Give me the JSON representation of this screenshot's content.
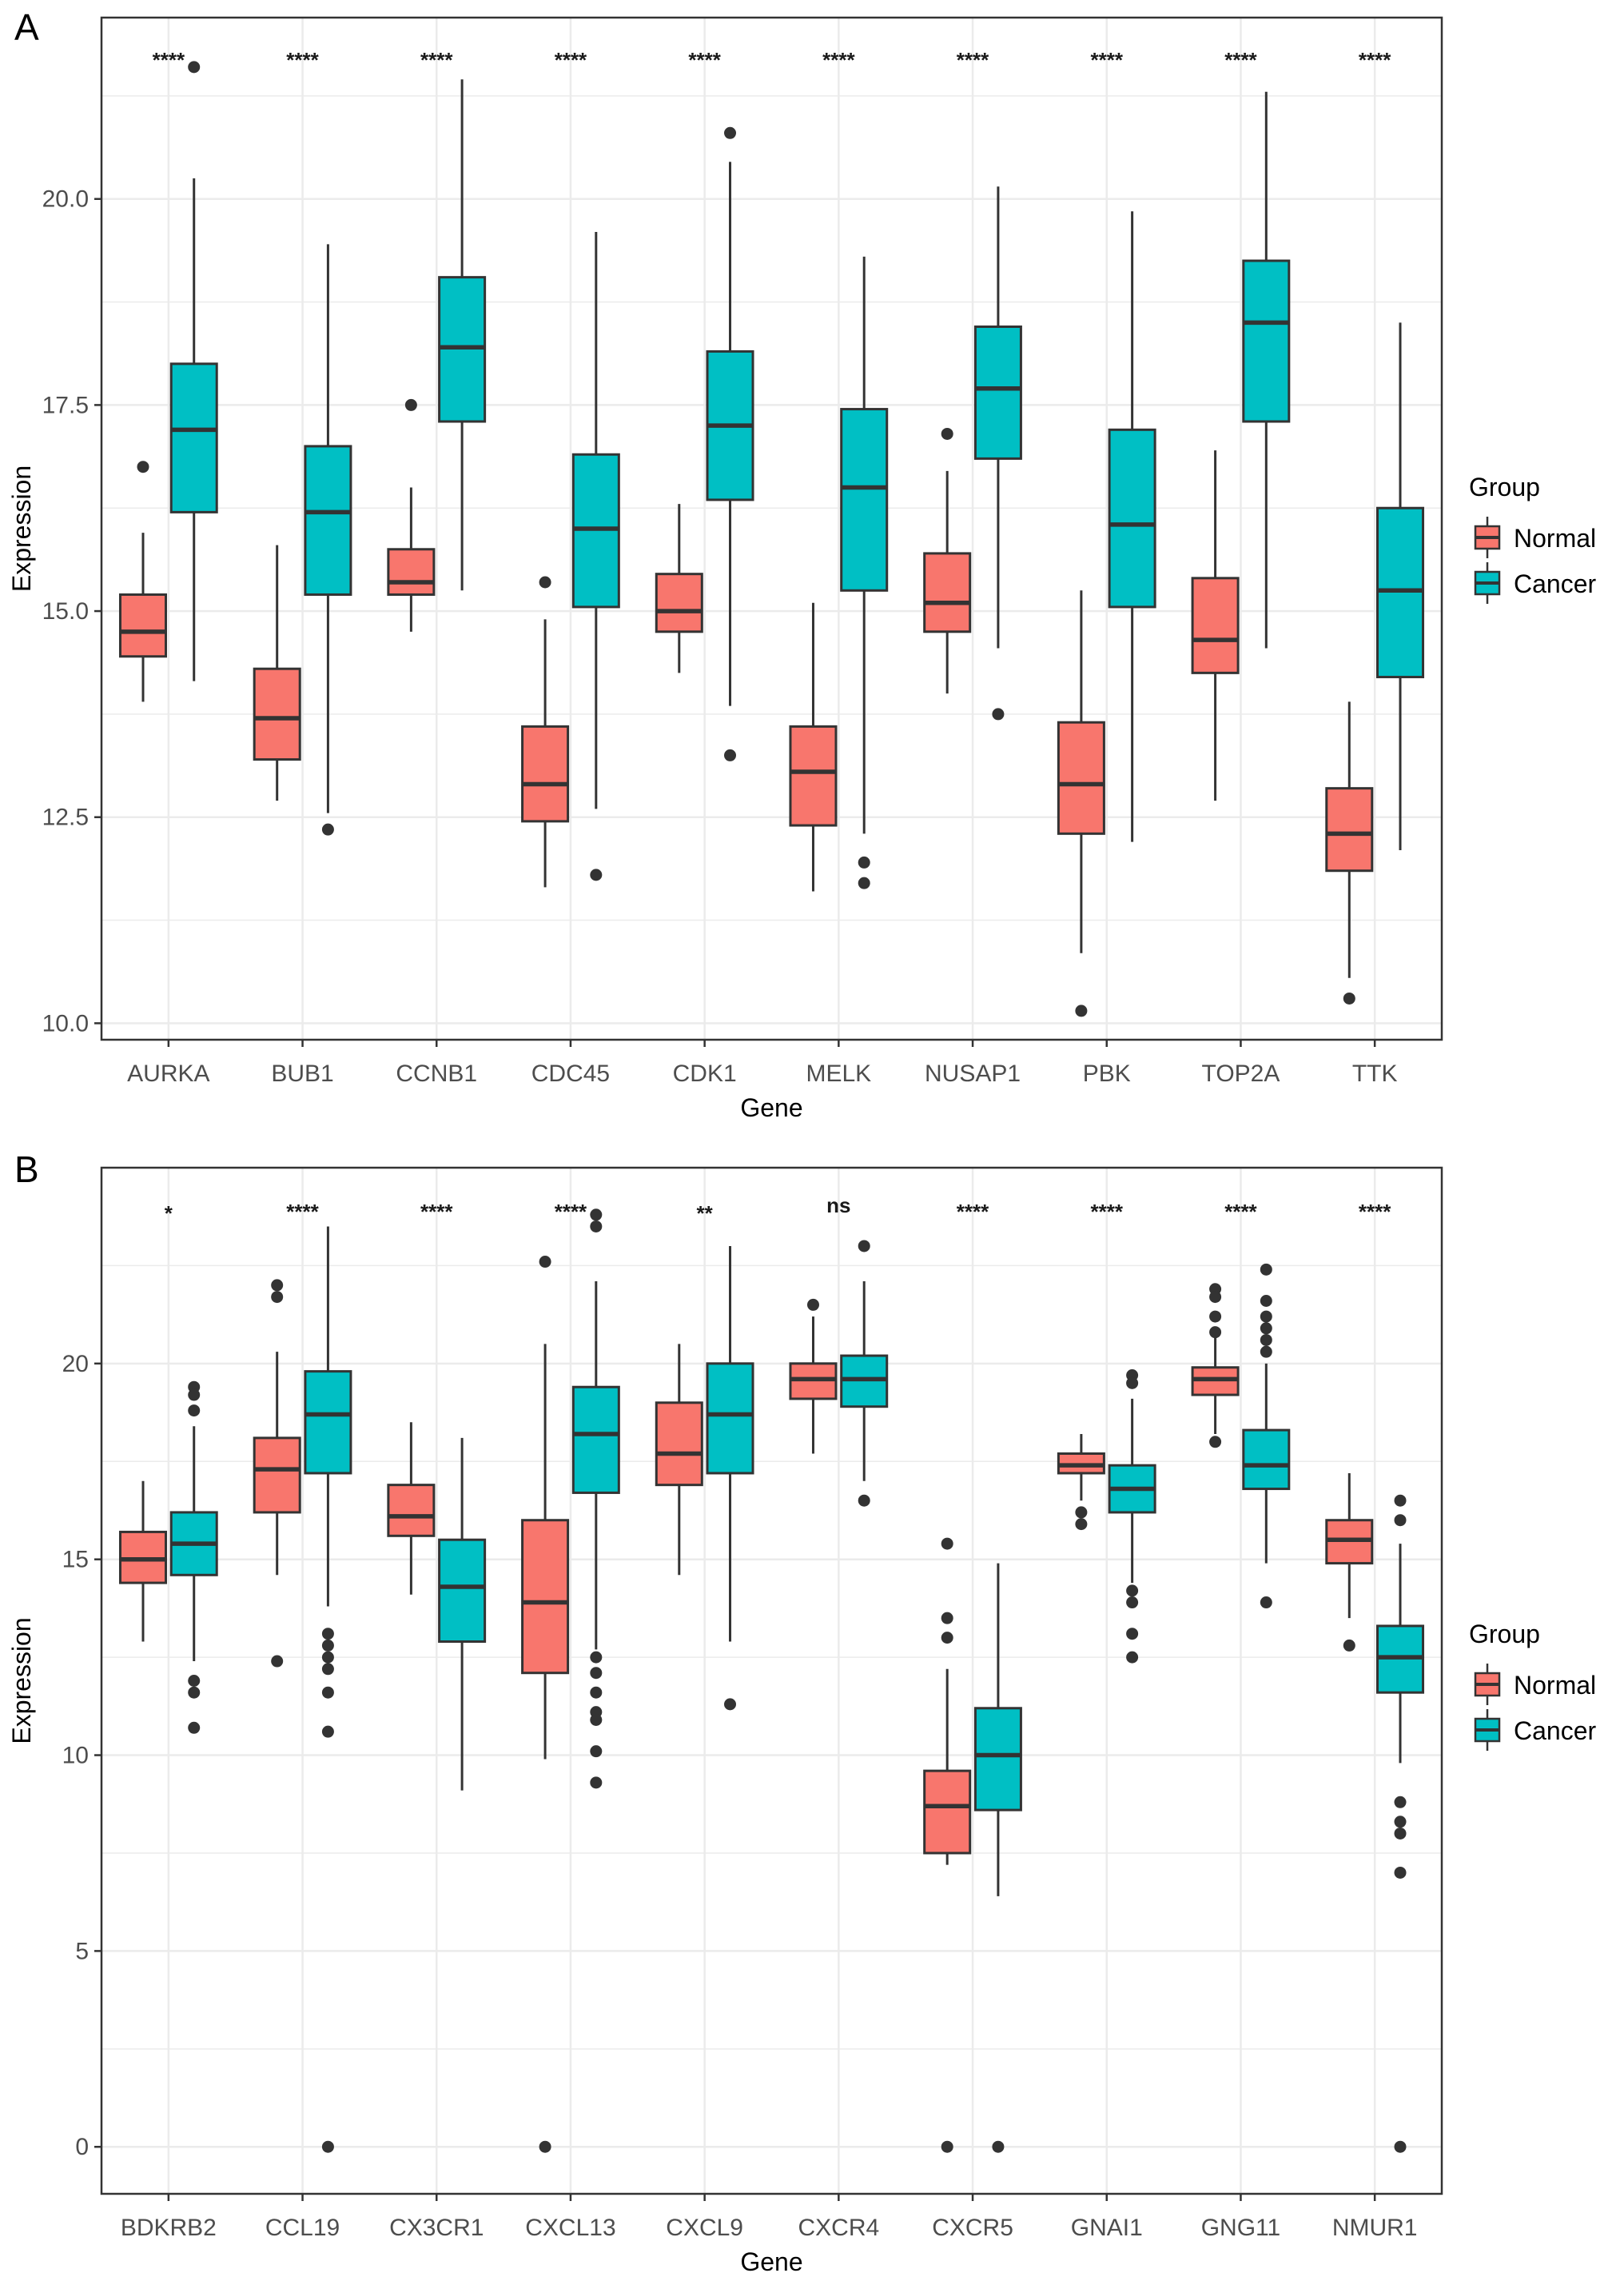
{
  "colors": {
    "normal": "#F8766D",
    "cancer": "#00BFC4",
    "outline": "#333333",
    "grid": "#EBEBEB"
  },
  "legend": {
    "title": "Group",
    "items": [
      "Normal",
      "Cancer"
    ]
  },
  "chart_data": [
    {
      "panel": "A",
      "type": "box",
      "xlabel": "Gene",
      "ylabel": "Expression",
      "ylim": [
        9.8,
        22.2
      ],
      "yticks": [
        10.0,
        12.5,
        15.0,
        17.5,
        20.0
      ],
      "ytick_labels": [
        "10.0",
        "12.5",
        "15.0",
        "17.5",
        "20.0"
      ],
      "grid": true,
      "legend_position": "right",
      "categories": [
        "AURKA",
        "BUB1",
        "CCNB1",
        "CDC45",
        "CDK1",
        "MELK",
        "NUSAP1",
        "PBK",
        "TOP2A",
        "TTK"
      ],
      "significance": [
        "****",
        "****",
        "****",
        "****",
        "****",
        "****",
        "****",
        "****",
        "****",
        "****"
      ],
      "series": [
        {
          "name": "Normal",
          "boxes": [
            {
              "whislo": 13.9,
              "q1": 14.45,
              "med": 14.75,
              "q3": 15.2,
              "whishi": 15.95,
              "fliers": [
                16.75
              ]
            },
            {
              "whislo": 12.7,
              "q1": 13.2,
              "med": 13.7,
              "q3": 14.3,
              "whishi": 15.8,
              "fliers": []
            },
            {
              "whislo": 14.75,
              "q1": 15.2,
              "med": 15.35,
              "q3": 15.75,
              "whishi": 16.5,
              "fliers": [
                17.5
              ]
            },
            {
              "whislo": 11.65,
              "q1": 12.45,
              "med": 12.9,
              "q3": 13.6,
              "whishi": 14.9,
              "fliers": [
                15.35
              ]
            },
            {
              "whislo": 14.25,
              "q1": 14.75,
              "med": 15.0,
              "q3": 15.45,
              "whishi": 16.3,
              "fliers": []
            },
            {
              "whislo": 11.6,
              "q1": 12.4,
              "med": 13.05,
              "q3": 13.6,
              "whishi": 15.1,
              "fliers": []
            },
            {
              "whislo": 14.0,
              "q1": 14.75,
              "med": 15.1,
              "q3": 15.7,
              "whishi": 16.7,
              "fliers": [
                17.15
              ]
            },
            {
              "whislo": 10.85,
              "q1": 12.3,
              "med": 12.9,
              "q3": 13.65,
              "whishi": 15.25,
              "fliers": [
                10.15
              ]
            },
            {
              "whislo": 12.7,
              "q1": 14.25,
              "med": 14.65,
              "q3": 15.4,
              "whishi": 16.95,
              "fliers": []
            },
            {
              "whislo": 10.55,
              "q1": 11.85,
              "med": 12.3,
              "q3": 12.85,
              "whishi": 13.9,
              "fliers": [
                10.3
              ]
            }
          ]
        },
        {
          "name": "Cancer",
          "boxes": [
            {
              "whislo": 14.15,
              "q1": 16.2,
              "med": 17.2,
              "q3": 18.0,
              "whishi": 20.25,
              "fliers": [
                21.6
              ]
            },
            {
              "whislo": 12.55,
              "q1": 15.2,
              "med": 16.2,
              "q3": 17.0,
              "whishi": 19.45,
              "fliers": [
                12.35
              ]
            },
            {
              "whislo": 15.25,
              "q1": 17.3,
              "med": 18.2,
              "q3": 19.05,
              "whishi": 21.45,
              "fliers": []
            },
            {
              "whislo": 12.6,
              "q1": 15.05,
              "med": 16.0,
              "q3": 16.9,
              "whishi": 19.6,
              "fliers": [
                11.8
              ]
            },
            {
              "whislo": 13.85,
              "q1": 16.35,
              "med": 17.25,
              "q3": 18.15,
              "whishi": 20.45,
              "fliers": [
                20.8,
                13.25
              ]
            },
            {
              "whislo": 12.3,
              "q1": 15.25,
              "med": 16.5,
              "q3": 17.45,
              "whishi": 19.3,
              "fliers": [
                11.95,
                11.7
              ]
            },
            {
              "whislo": 14.55,
              "q1": 16.85,
              "med": 17.7,
              "q3": 18.45,
              "whishi": 20.15,
              "fliers": [
                13.75
              ]
            },
            {
              "whislo": 12.2,
              "q1": 15.05,
              "med": 16.05,
              "q3": 17.2,
              "whishi": 19.85,
              "fliers": []
            },
            {
              "whislo": 14.55,
              "q1": 17.3,
              "med": 18.5,
              "q3": 19.25,
              "whishi": 21.3,
              "fliers": []
            },
            {
              "whislo": 12.1,
              "q1": 14.2,
              "med": 15.25,
              "q3": 16.25,
              "whishi": 18.5,
              "fliers": []
            }
          ]
        }
      ]
    },
    {
      "panel": "B",
      "type": "box",
      "xlabel": "Gene",
      "ylabel": "Expression",
      "ylim": [
        -1.2,
        25.0
      ],
      "yticks": [
        0,
        5,
        10,
        15,
        20
      ],
      "ytick_labels": [
        "0",
        "5",
        "10",
        "15",
        "20"
      ],
      "grid": true,
      "legend_position": "right",
      "categories": [
        "BDKRB2",
        "CCL19",
        "CX3CR1",
        "CXCL13",
        "CXCL9",
        "CXCR4",
        "CXCR5",
        "GNAI1",
        "GNG11",
        "NMUR1"
      ],
      "significance": [
        "*",
        "****",
        "****",
        "****",
        "**",
        "ns",
        "****",
        "****",
        "****",
        "****"
      ],
      "series": [
        {
          "name": "Normal",
          "boxes": [
            {
              "whislo": 12.9,
              "q1": 14.4,
              "med": 15.0,
              "q3": 15.7,
              "whishi": 17.0,
              "fliers": []
            },
            {
              "whislo": 14.6,
              "q1": 16.2,
              "med": 17.3,
              "q3": 18.1,
              "whishi": 20.3,
              "fliers": [
                22.0,
                21.7,
                12.4
              ]
            },
            {
              "whislo": 14.1,
              "q1": 15.6,
              "med": 16.1,
              "q3": 16.9,
              "whishi": 18.5,
              "fliers": []
            },
            {
              "whislo": 9.9,
              "q1": 12.1,
              "med": 13.9,
              "q3": 16.0,
              "whishi": 20.5,
              "fliers": [
                22.6,
                0
              ]
            },
            {
              "whislo": 14.6,
              "q1": 16.9,
              "med": 17.7,
              "q3": 19.0,
              "whishi": 20.5,
              "fliers": []
            },
            {
              "whislo": 17.7,
              "q1": 19.1,
              "med": 19.6,
              "q3": 20.0,
              "whishi": 21.2,
              "fliers": [
                21.5
              ]
            },
            {
              "whislo": 7.2,
              "q1": 7.5,
              "med": 8.7,
              "q3": 9.6,
              "whishi": 12.2,
              "fliers": [
                15.4,
                13.5,
                13.0,
                0
              ]
            },
            {
              "whislo": 16.5,
              "q1": 17.2,
              "med": 17.4,
              "q3": 17.7,
              "whishi": 18.2,
              "fliers": [
                16.2,
                15.9
              ]
            },
            {
              "whislo": 18.2,
              "q1": 19.2,
              "med": 19.6,
              "q3": 19.9,
              "whishi": 20.8,
              "fliers": [
                21.9,
                21.7,
                21.2,
                20.8,
                18.0
              ]
            },
            {
              "whislo": 13.5,
              "q1": 14.9,
              "med": 15.5,
              "q3": 16.0,
              "whishi": 17.2,
              "fliers": [
                12.8
              ]
            }
          ]
        },
        {
          "name": "Cancer",
          "boxes": [
            {
              "whislo": 12.4,
              "q1": 14.6,
              "med": 15.4,
              "q3": 16.2,
              "whishi": 18.4,
              "fliers": [
                19.4,
                19.2,
                18.8,
                11.9,
                11.6,
                10.7
              ]
            },
            {
              "whislo": 13.8,
              "q1": 17.2,
              "med": 18.7,
              "q3": 19.8,
              "whishi": 23.5,
              "fliers": [
                13.1,
                12.8,
                12.5,
                12.2,
                11.6,
                10.6,
                0
              ]
            },
            {
              "whislo": 9.1,
              "q1": 12.9,
              "med": 14.3,
              "q3": 15.5,
              "whishi": 18.1,
              "fliers": []
            },
            {
              "whislo": 12.7,
              "q1": 16.7,
              "med": 18.2,
              "q3": 19.4,
              "whishi": 22.1,
              "fliers": [
                23.8,
                23.5,
                12.5,
                12.1,
                11.6,
                11.1,
                10.9,
                10.1,
                9.3
              ]
            },
            {
              "whislo": 12.9,
              "q1": 17.2,
              "med": 18.7,
              "q3": 20.0,
              "whishi": 23.0,
              "fliers": [
                11.3
              ]
            },
            {
              "whislo": 17.0,
              "q1": 18.9,
              "med": 19.6,
              "q3": 20.2,
              "whishi": 22.1,
              "fliers": [
                23.0,
                16.5
              ]
            },
            {
              "whislo": 6.4,
              "q1": 8.6,
              "med": 10.0,
              "q3": 11.2,
              "whishi": 14.9,
              "fliers": [
                0
              ]
            },
            {
              "whislo": 14.4,
              "q1": 16.2,
              "med": 16.8,
              "q3": 17.4,
              "whishi": 19.1,
              "fliers": [
                19.7,
                19.5,
                14.2,
                13.9,
                13.1,
                12.5
              ]
            },
            {
              "whislo": 14.9,
              "q1": 16.8,
              "med": 17.4,
              "q3": 18.3,
              "whishi": 20.0,
              "fliers": [
                22.4,
                21.6,
                21.2,
                20.9,
                20.6,
                20.3,
                13.9
              ]
            },
            {
              "whislo": 9.8,
              "q1": 11.6,
              "med": 12.5,
              "q3": 13.3,
              "whishi": 15.4,
              "fliers": [
                16.5,
                16.0,
                8.8,
                8.3,
                8.0,
                7.0,
                0
              ]
            }
          ]
        }
      ]
    }
  ]
}
